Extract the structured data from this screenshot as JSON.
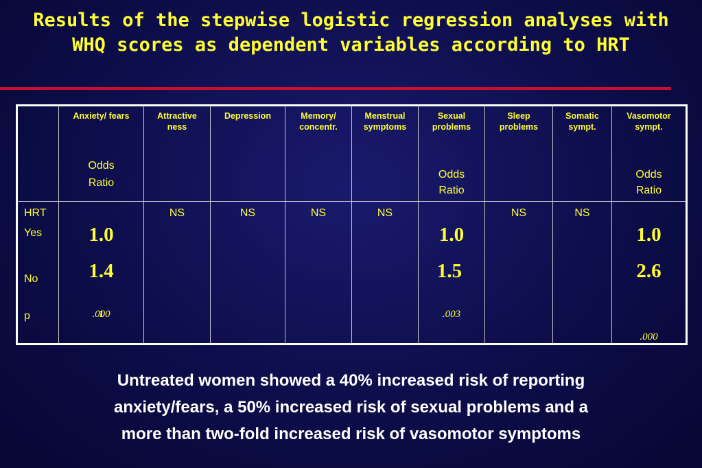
{
  "title": {
    "line1": "Results of the stepwise logistic regression  analyses with",
    "line2": "WHQ scores as dependent variables according to HRT"
  },
  "table": {
    "headers": [
      {
        "label": "Anxiety/ fears",
        "sub1": "Odds",
        "sub2": "Ratio"
      },
      {
        "label_l1": "Attractive",
        "label_l2": "ness"
      },
      {
        "label": "Depression"
      },
      {
        "label_l1": "Memory/",
        "label_l2": "concentr."
      },
      {
        "label_l1": "Menstrual",
        "label_l2": "symptoms"
      },
      {
        "label_l1": "Sexual",
        "label_l2": "problems",
        "sub1": "Odds",
        "sub2": "Ratio"
      },
      {
        "label_l1": "Sleep",
        "label_l2": "problems"
      },
      {
        "label_l1": "Somatic",
        "label_l2": "sympt."
      },
      {
        "label_l1": "Vasomotor",
        "label_l2": "sympt.",
        "sub1": "Odds",
        "sub2": "Ratio"
      }
    ],
    "row_labels": {
      "hrt": "HRT",
      "yes": "Yes",
      "no": "No",
      "p": "p"
    },
    "ns": "NS",
    "anxiety": {
      "yes": "1.0",
      "no": "1.4",
      "p_main": ".000",
      "p_tail": "1"
    },
    "sexual": {
      "yes": "1.0",
      "no": "1.5",
      "p": ".003"
    },
    "vasomotor": {
      "yes": "1.0",
      "no": "2.6",
      "p": ".000"
    }
  },
  "caption": {
    "line1": "Untreated women showed a 40% increased risk of reporting",
    "line2": "anxiety/fears, a 50% increased risk of sexual problems and a",
    "line3": "more than two-fold increased risk of vasomotor symptoms"
  },
  "colors": {
    "background": "#0d0d4a",
    "title": "#ffff33",
    "divider": "#c8102e",
    "caption": "#ffffff"
  }
}
